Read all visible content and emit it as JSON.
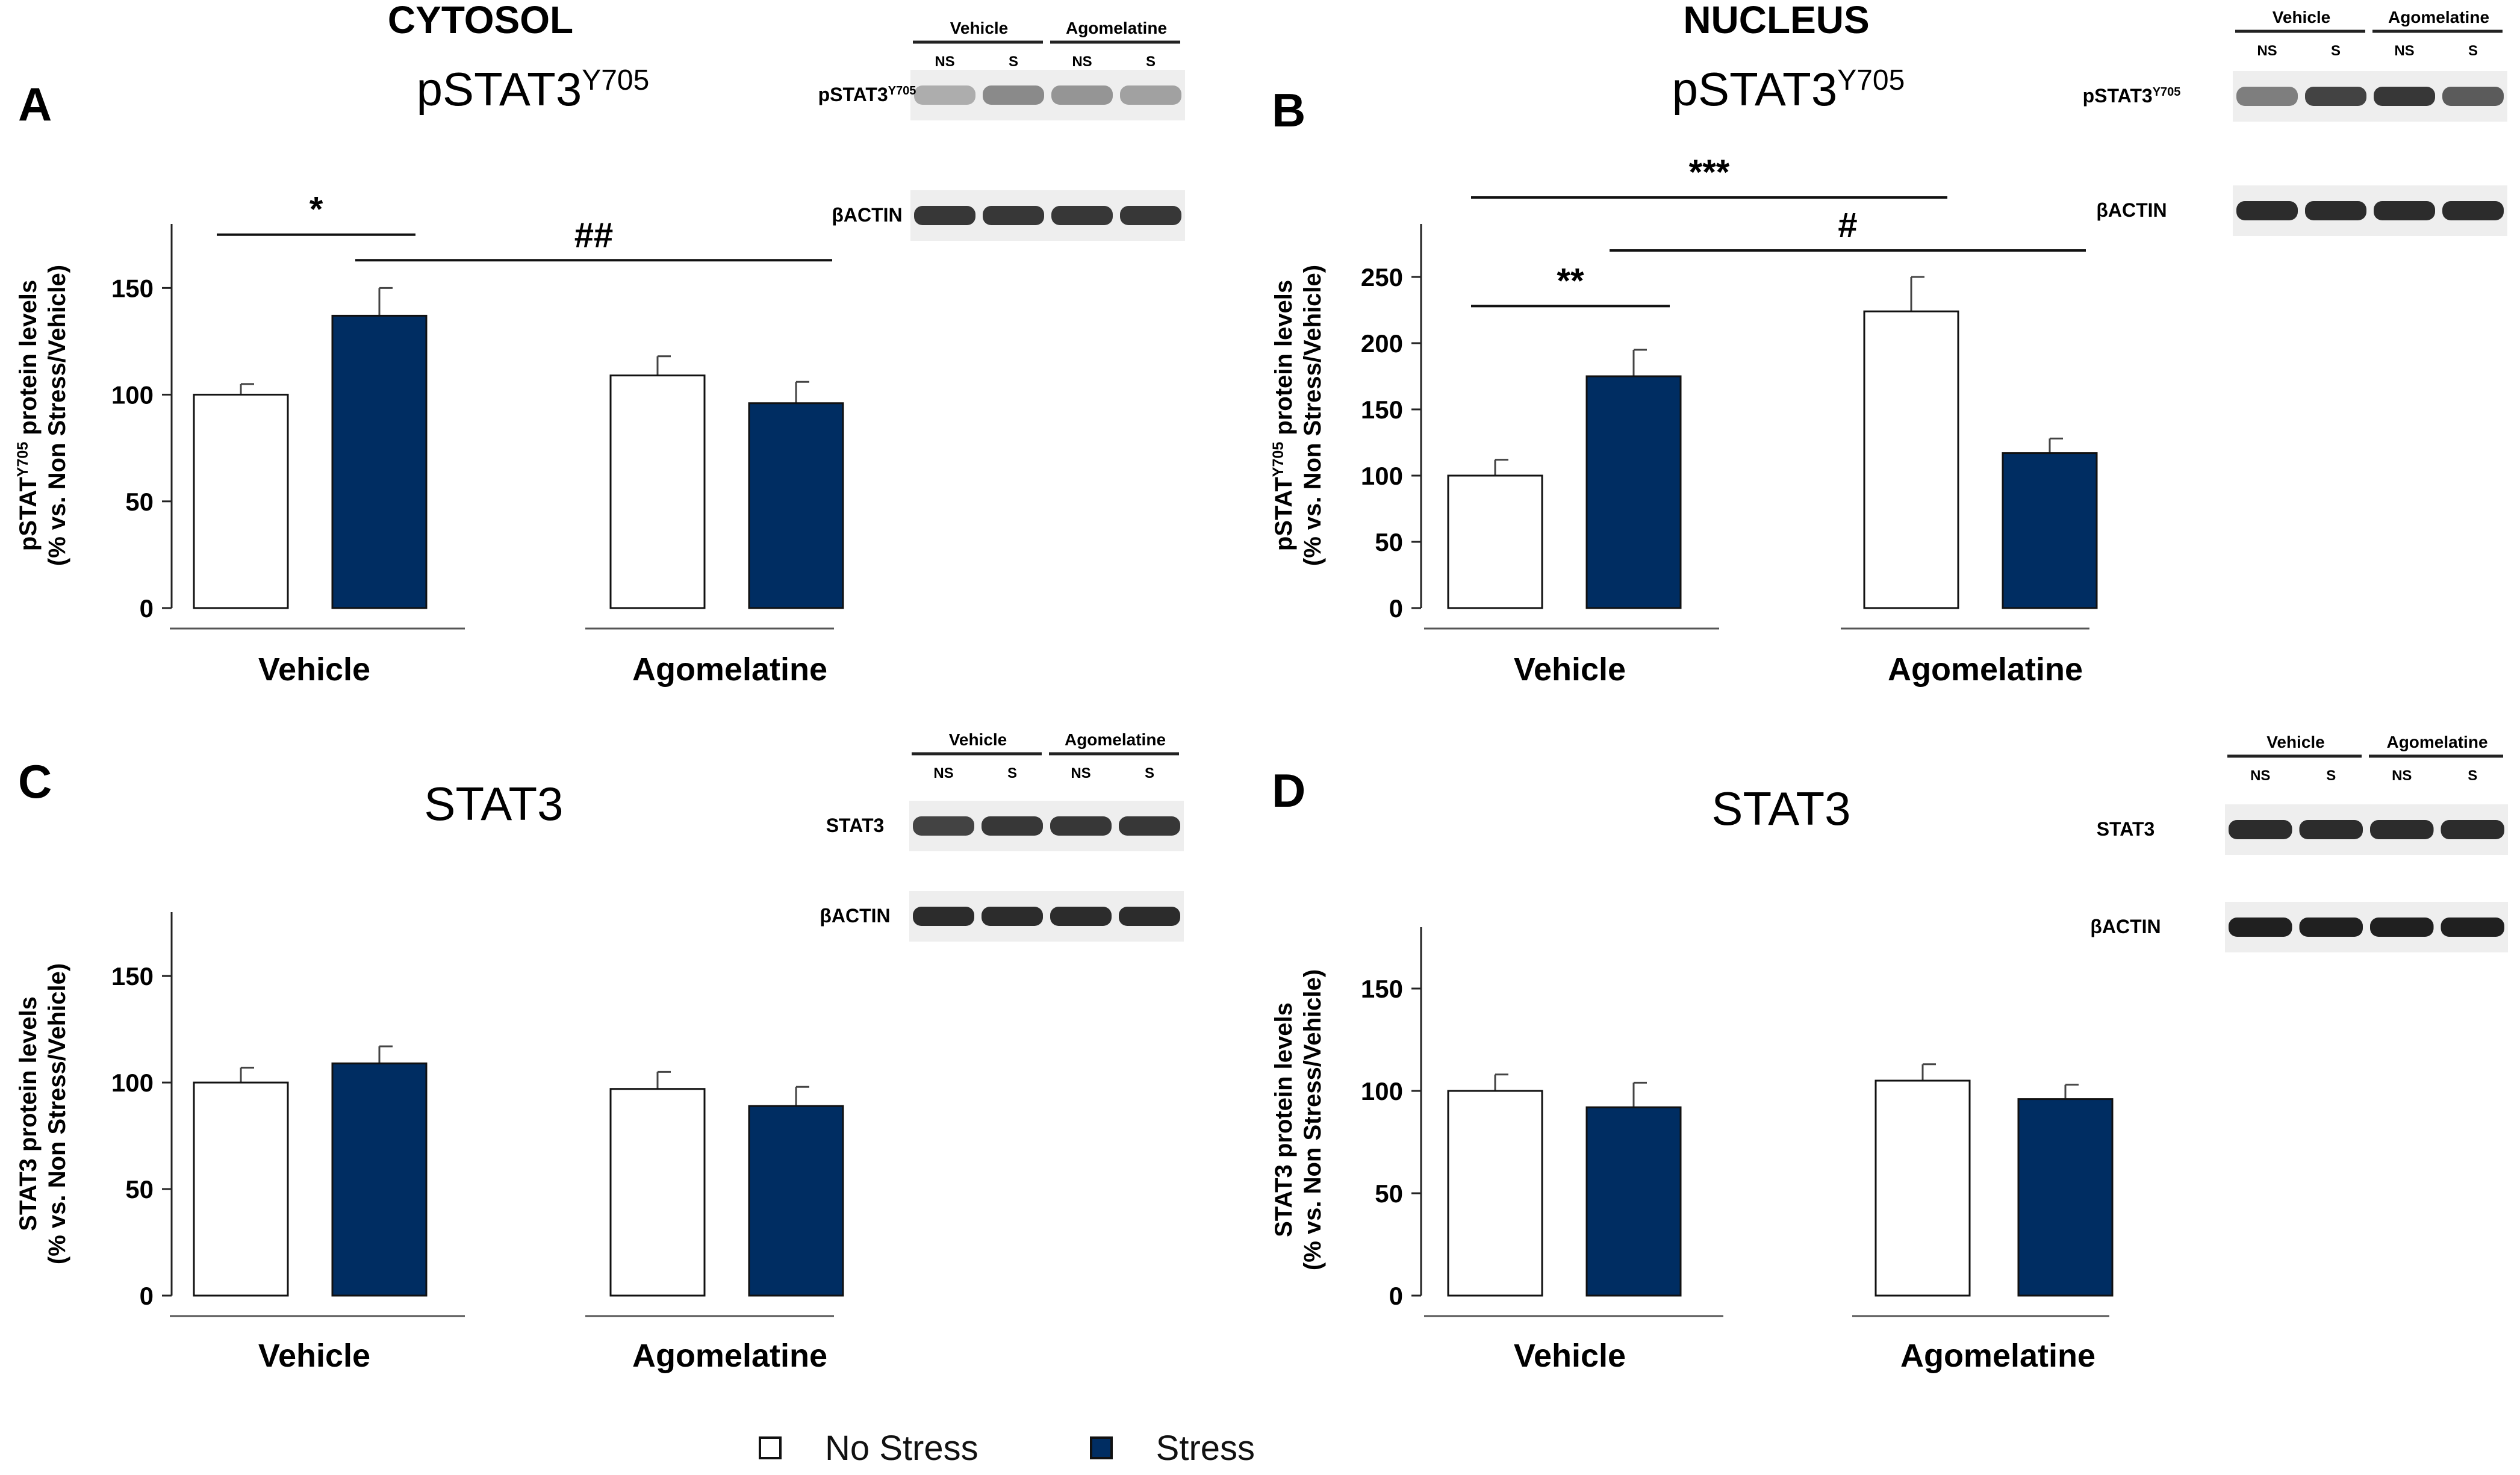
{
  "headers": {
    "left": "CYTOSOL",
    "right": "NUCLEUS"
  },
  "colors": {
    "stress": "#002d62",
    "no_stress": "#ffffff",
    "outline": "#111111"
  },
  "legend": {
    "no_stress_label": "No Stress",
    "stress_label": "Stress"
  },
  "chart_data": [
    {
      "panel": "A",
      "type": "bar",
      "title": "pSTAT3",
      "title_sup": "Y705",
      "ylabel_line1": "pSTAT",
      "ylabel_sup": "Y705",
      "ylabel_line1_rest": " protein levels",
      "ylabel_line2": "(% vs. Non Stress/Vehicle)",
      "categories": [
        "Vehicle",
        "Agomelatine"
      ],
      "ylim": [
        0,
        180
      ],
      "yticks": [
        0,
        50,
        100,
        150
      ],
      "series": [
        {
          "name": "No Stress",
          "values": [
            100,
            109
          ],
          "errors": [
            5,
            9
          ]
        },
        {
          "name": "Stress",
          "values": [
            137,
            96
          ],
          "errors": [
            13,
            10
          ]
        }
      ],
      "annotations": [
        {
          "label": "*",
          "from": [
            0,
            0
          ],
          "to": [
            0,
            1
          ],
          "y": 175
        },
        {
          "label": "##",
          "from": [
            0,
            1
          ],
          "to": [
            1,
            1
          ],
          "y": 163
        }
      ],
      "blot": {
        "groups": [
          "Vehicle",
          "Agomelatine"
        ],
        "lanes": [
          "NS",
          "S",
          "NS",
          "S"
        ],
        "rows": [
          {
            "label": "pSTAT3",
            "sup": "Y705",
            "intensity": [
              0.35,
              0.5,
              0.45,
              0.4
            ]
          },
          {
            "label": "βACTIN",
            "sup": "",
            "intensity": [
              0.85,
              0.85,
              0.85,
              0.85
            ]
          }
        ]
      }
    },
    {
      "panel": "B",
      "type": "bar",
      "title": "pSTAT3",
      "title_sup": "Y705",
      "ylabel_line1": "pSTAT",
      "ylabel_sup": "Y705",
      "ylabel_line1_rest": " protein levels",
      "ylabel_line2": "(% vs. Non Stress/Vehicle)",
      "categories": [
        "Vehicle",
        "Agomelatine"
      ],
      "ylim": [
        0,
        290
      ],
      "yticks": [
        0,
        50,
        100,
        150,
        200,
        250
      ],
      "series": [
        {
          "name": "No Stress",
          "values": [
            100,
            224
          ],
          "errors": [
            12,
            26
          ]
        },
        {
          "name": "Stress",
          "values": [
            175,
            117
          ],
          "errors": [
            20,
            11
          ]
        }
      ],
      "annotations": [
        {
          "label": "**",
          "from": [
            0,
            0
          ],
          "to": [
            0,
            1
          ],
          "y": 228
        },
        {
          "label": "#",
          "from": [
            0,
            1
          ],
          "to": [
            1,
            1
          ],
          "y": 270
        },
        {
          "label": "***",
          "from": [
            0,
            0
          ],
          "to": [
            1,
            0
          ],
          "y": 310
        }
      ],
      "blot": {
        "groups": [
          "Vehicle",
          "Agomelatine"
        ],
        "lanes": [
          "NS",
          "S",
          "NS",
          "S"
        ],
        "rows": [
          {
            "label": "pSTAT3",
            "sup": "Y705",
            "intensity": [
              0.55,
              0.8,
              0.85,
              0.7
            ]
          },
          {
            "label": "βACTIN",
            "sup": "",
            "intensity": [
              0.9,
              0.9,
              0.9,
              0.9
            ]
          }
        ]
      }
    },
    {
      "panel": "C",
      "type": "bar",
      "title": "STAT3",
      "title_sup": "",
      "ylabel_line1": "STAT3",
      "ylabel_sup": "",
      "ylabel_line1_rest": " protein  levels",
      "ylabel_line2": "(% vs. Non Stress/Vehicle)",
      "categories": [
        "Vehicle",
        "Agomelatine"
      ],
      "ylim": [
        0,
        180
      ],
      "yticks": [
        0,
        50,
        100,
        150
      ],
      "series": [
        {
          "name": "No Stress",
          "values": [
            100,
            97
          ],
          "errors": [
            7,
            8
          ]
        },
        {
          "name": "Stress",
          "values": [
            109,
            89
          ],
          "errors": [
            8,
            9
          ]
        }
      ],
      "annotations": [],
      "blot": {
        "groups": [
          "Vehicle",
          "Agomelatine"
        ],
        "lanes": [
          "NS",
          "S",
          "NS",
          "S"
        ],
        "rows": [
          {
            "label": "STAT3",
            "sup": "",
            "intensity": [
              0.8,
              0.85,
              0.85,
              0.85
            ]
          },
          {
            "label": "βACTIN",
            "sup": "",
            "intensity": [
              0.9,
              0.9,
              0.9,
              0.9
            ]
          }
        ]
      }
    },
    {
      "panel": "D",
      "type": "bar",
      "title": "STAT3",
      "title_sup": "",
      "ylabel_line1": "STAT3",
      "ylabel_sup": "",
      "ylabel_line1_rest": " protein levels",
      "ylabel_line2": "(% vs. Non Stress/Vehicle)",
      "categories": [
        "Vehicle",
        "Agomelatine"
      ],
      "ylim": [
        0,
        180
      ],
      "yticks": [
        0,
        50,
        100,
        150
      ],
      "series": [
        {
          "name": "No Stress",
          "values": [
            100,
            105
          ],
          "errors": [
            8,
            8
          ]
        },
        {
          "name": "Stress",
          "values": [
            92,
            96
          ],
          "errors": [
            12,
            7
          ]
        }
      ],
      "annotations": [],
      "blot": {
        "groups": [
          "Vehicle",
          "Agomelatine"
        ],
        "lanes": [
          "NS",
          "S",
          "NS",
          "S"
        ],
        "rows": [
          {
            "label": "STAT3",
            "sup": "",
            "intensity": [
              0.9,
              0.9,
              0.9,
              0.9
            ]
          },
          {
            "label": "βACTIN",
            "sup": "",
            "intensity": [
              0.95,
              0.95,
              0.95,
              0.95
            ]
          }
        ]
      }
    }
  ]
}
